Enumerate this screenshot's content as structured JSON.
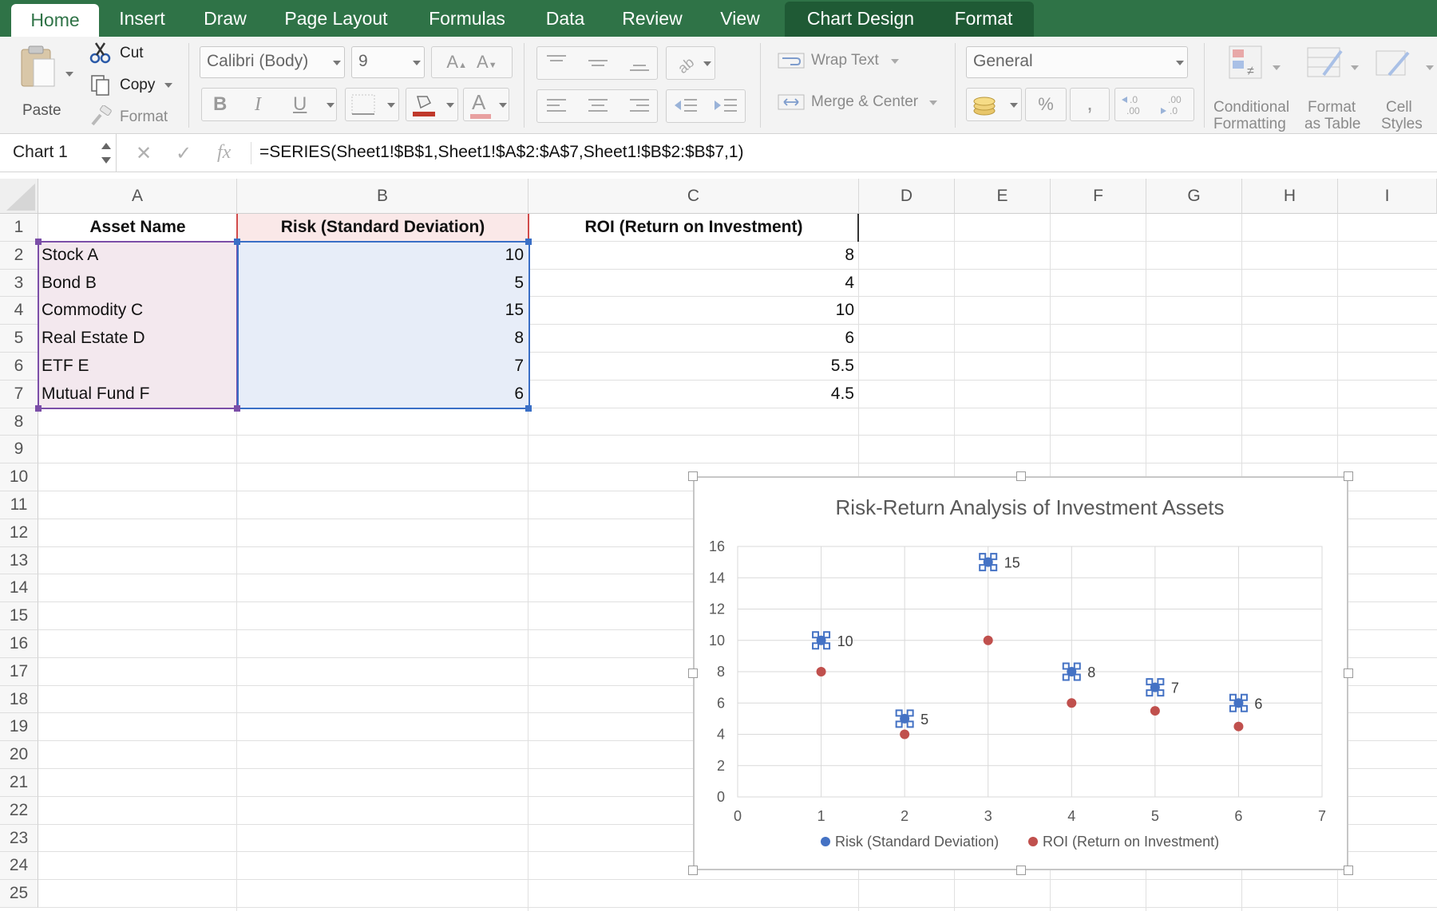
{
  "tabs": [
    {
      "label": "Home",
      "active": true
    },
    {
      "label": "Insert"
    },
    {
      "label": "Draw"
    },
    {
      "label": "Page Layout"
    },
    {
      "label": "Formulas"
    },
    {
      "label": "Data"
    },
    {
      "label": "Review"
    },
    {
      "label": "View"
    },
    {
      "label": "Chart Design"
    },
    {
      "label": "Format"
    }
  ],
  "ribbon": {
    "clipboard": {
      "paste": "Paste",
      "cut": "Cut",
      "copy": "Copy",
      "format": "Format"
    },
    "font": {
      "name": "Calibri (Body)",
      "size": "9",
      "bold": "B",
      "italic": "I",
      "underline": "U"
    },
    "alignment": {
      "wrap_text": "Wrap Text",
      "merge_center": "Merge & Center"
    },
    "number": {
      "format": "General",
      "percent": "%",
      "comma": ","
    },
    "styles": {
      "conditional": [
        "Conditional",
        "Formatting"
      ],
      "format_table": [
        "Format",
        "as Table"
      ],
      "cell_styles": [
        "Cell",
        "Styles"
      ]
    }
  },
  "formula_bar": {
    "name_box": "Chart 1",
    "fx": "fx",
    "formula": "=SERIES(Sheet1!$B$1,Sheet1!$A$2:$A$7,Sheet1!$B$2:$B$7,1)"
  },
  "sheet": {
    "columns": [
      "A",
      "B",
      "C",
      "D",
      "E",
      "F",
      "G",
      "H",
      "I"
    ],
    "rows": [
      "1",
      "2",
      "3",
      "4",
      "5",
      "6",
      "7",
      "8",
      "9",
      "10",
      "11",
      "12",
      "13",
      "14",
      "15",
      "16",
      "17",
      "18",
      "19",
      "20",
      "21",
      "22",
      "23",
      "24",
      "25"
    ],
    "headers": [
      "Asset Name",
      "Risk (Standard Deviation)",
      "ROI (Return on Investment)"
    ],
    "data": [
      [
        "Stock A",
        "10",
        "8"
      ],
      [
        "Bond B",
        "5",
        "4"
      ],
      [
        "Commodity C",
        "15",
        "10"
      ],
      [
        "Real Estate D",
        "8",
        "6"
      ],
      [
        "ETF E",
        "7",
        "5.5"
      ],
      [
        "Mutual Fund F",
        "6",
        "4.5"
      ]
    ]
  },
  "chart_data": {
    "type": "scatter",
    "title": "Risk-Return Analysis of Investment Assets",
    "xlim": [
      0,
      7
    ],
    "ylim": [
      0,
      16
    ],
    "x_ticks": [
      "0",
      "1",
      "2",
      "3",
      "4",
      "5",
      "6",
      "7"
    ],
    "y_ticks": [
      "0",
      "2",
      "4",
      "6",
      "8",
      "10",
      "12",
      "14",
      "16"
    ],
    "grid": true,
    "legend": "bottom",
    "series": [
      {
        "name": "Risk (Standard Deviation)",
        "color": "#4472c4",
        "x": [
          1,
          2,
          3,
          4,
          5,
          6
        ],
        "y": [
          10,
          5,
          15,
          8,
          7,
          6
        ],
        "labels": [
          "10",
          "5",
          "15",
          "8",
          "7",
          "6"
        ],
        "selected": true
      },
      {
        "name": "ROI (Return on Investment)",
        "color": "#c0504d",
        "x": [
          1,
          2,
          3,
          4,
          5,
          6
        ],
        "y": [
          8,
          4,
          10,
          6,
          5.5,
          4.5
        ]
      }
    ]
  }
}
